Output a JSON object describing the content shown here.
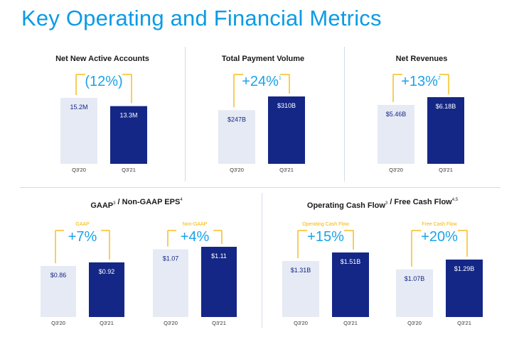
{
  "title": "Key Operating and Financial Metrics",
  "colors": {
    "title": "#0a9be4",
    "change": "#1aa3e8",
    "bracket": "#f4b400",
    "prior_bar": "#e6eaf4",
    "current_bar": "#142787",
    "label_dark": "#142787",
    "label_light": "#ffffff",
    "heading": "#1a1a1a"
  },
  "chart_data": [
    {
      "type": "bar",
      "title": "Net New Active Accounts",
      "title_sup": "",
      "categories": [
        "Q3'20",
        "Q3'21"
      ],
      "values": [
        15.2,
        13.3
      ],
      "value_labels": [
        "15.2M",
        "13.3M"
      ],
      "change": "(12%)",
      "change_sup": "",
      "bracket_label": ""
    },
    {
      "type": "bar",
      "title": "Total Payment Volume",
      "title_sup": "",
      "categories": [
        "Q3'20",
        "Q3'21"
      ],
      "values": [
        247,
        310
      ],
      "value_labels": [
        "$247B",
        "$310B"
      ],
      "change": "+24%",
      "change_sup": "1",
      "bracket_label": ""
    },
    {
      "type": "bar",
      "title": "Net Revenues",
      "title_sup": "",
      "categories": [
        "Q3'20",
        "Q3'21"
      ],
      "values": [
        5.46,
        6.18
      ],
      "value_labels": [
        "$5.46B",
        "$6.18B"
      ],
      "change": "+13%",
      "change_sup": "2",
      "bracket_label": ""
    },
    {
      "type": "bar",
      "title": "GAAP",
      "title_sup": "3",
      "categories": [
        "Q3'20",
        "Q3'21"
      ],
      "values": [
        0.86,
        0.92
      ],
      "value_labels": [
        "$0.86",
        "$0.92"
      ],
      "change": "+7%",
      "change_sup": "",
      "bracket_label": "GAAP"
    },
    {
      "type": "bar",
      "title": "Non-GAAP EPS",
      "title_sup": "4",
      "categories": [
        "Q3'20",
        "Q3'21"
      ],
      "values": [
        1.07,
        1.11
      ],
      "value_labels": [
        "$1.07",
        "$1.11"
      ],
      "change": "+4%",
      "change_sup": "",
      "bracket_label": "Non-GAAP"
    },
    {
      "type": "bar",
      "title": "Operating Cash Flow",
      "title_sup": "3",
      "categories": [
        "Q3'20",
        "Q3'21"
      ],
      "values": [
        1.31,
        1.51
      ],
      "value_labels": [
        "$1.31B",
        "$1.51B"
      ],
      "change": "+15%",
      "change_sup": "",
      "bracket_label": "Operating Cash Flow"
    },
    {
      "type": "bar",
      "title": "Free Cash Flow",
      "title_sup": "4,5",
      "categories": [
        "Q3'20",
        "Q3'21"
      ],
      "values": [
        1.07,
        1.29
      ],
      "value_labels": [
        "$1.07B",
        "$1.29B"
      ],
      "change": "+20%",
      "change_sup": "",
      "bracket_label": "Free Cash Flow"
    }
  ]
}
